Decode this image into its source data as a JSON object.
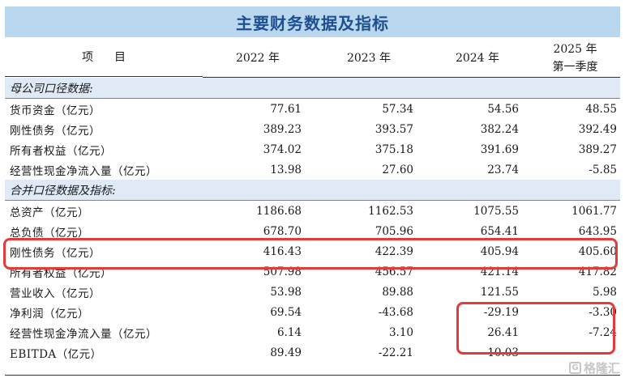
{
  "title": "主要财务数据及指标",
  "header": {
    "item": "项目",
    "cols": [
      "2022 年",
      "2023 年",
      "2024 年"
    ],
    "last_col_line1": "2025 年",
    "last_col_line2": "第一季度"
  },
  "sections": [
    {
      "title": "母公司口径数据:",
      "rows": [
        {
          "label": "货币资金（亿元）",
          "values": [
            "77.61",
            "57.34",
            "54.56",
            "48.55"
          ]
        },
        {
          "label": "刚性债务（亿元）",
          "values": [
            "389.23",
            "393.57",
            "382.24",
            "392.49"
          ]
        },
        {
          "label": "所有者权益（亿元）",
          "values": [
            "374.02",
            "375.18",
            "391.69",
            "389.27"
          ]
        },
        {
          "label": "经营性现金净流入量（亿元）",
          "values": [
            "13.98",
            "27.60",
            "23.74",
            "-5.85"
          ]
        }
      ]
    },
    {
      "title": "合并口径数据及指标:",
      "rows": [
        {
          "label": "总资产（亿元）",
          "values": [
            "1186.68",
            "1162.53",
            "1075.55",
            "1061.77"
          ]
        },
        {
          "label": "总负债（亿元）",
          "values": [
            "678.70",
            "705.96",
            "654.41",
            "643.95"
          ]
        },
        {
          "label": "刚性债务（亿元）",
          "values": [
            "416.43",
            "422.39",
            "405.94",
            "405.60"
          ]
        },
        {
          "label": "所有者权益（亿元）",
          "values": [
            "507.98",
            "456.57",
            "421.14",
            "417.82"
          ]
        },
        {
          "label": "营业收入（亿元）",
          "values": [
            "53.98",
            "89.88",
            "121.55",
            "5.98"
          ]
        },
        {
          "label": "净利润（亿元）",
          "values": [
            "69.54",
            "-43.68",
            "-29.19",
            "-3.30"
          ]
        },
        {
          "label": "经营性现金净流入量（亿元）",
          "values": [
            "6.14",
            "3.10",
            "26.41",
            "-7.24"
          ]
        },
        {
          "label": "EBITDA（亿元）",
          "values": [
            "89.49",
            "-22.21",
            "-10.03",
            ""
          ]
        }
      ]
    }
  ],
  "highlight_color": "#e23b3b",
  "watermark": "格隆汇",
  "watermark_logo": "G"
}
